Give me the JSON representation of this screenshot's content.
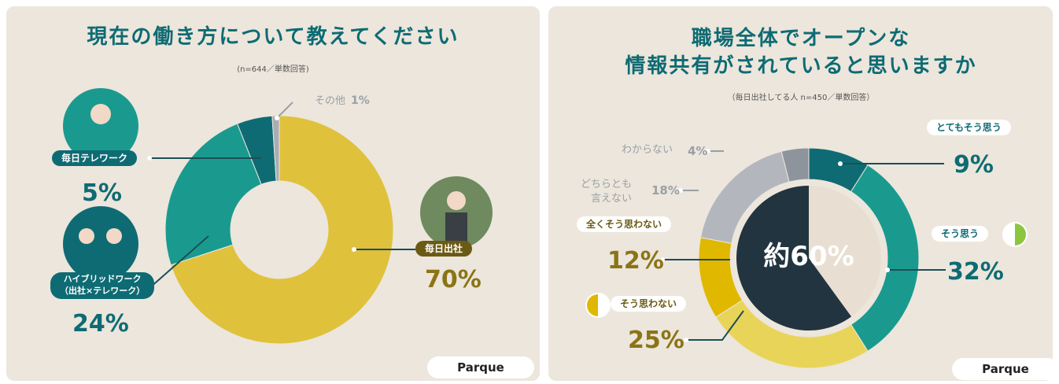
{
  "brand": "Parque",
  "chart_data": [
    {
      "type": "donut",
      "title": "現在の働き方について教えてください",
      "subtitle": "(n=644／単数回答)",
      "categories": [
        "毎日出社",
        "ハイブリッドワーク\n（出社×テレワーク）",
        "毎日テレワーク",
        "その他"
      ],
      "values": [
        70,
        24,
        5,
        1
      ],
      "value_labels": [
        "70%",
        "24%",
        "5%",
        "1%"
      ],
      "colors": [
        "#dfc13c",
        "#1a9a8f",
        "#0e6b73",
        "#a9adb3"
      ]
    },
    {
      "type": "donut",
      "title": "職場全体でオープンな\n情報共有がされていると思いますか",
      "subtitle": "（毎日出社してる人 n=450／単数回答）",
      "categories": [
        "とてもそう思う",
        "そう思う",
        "そう思わない",
        "全くそう思わない",
        "どちらとも\n言えない",
        "わからない"
      ],
      "values": [
        9,
        32,
        25,
        12,
        18,
        4
      ],
      "value_labels": [
        "9%",
        "32%",
        "25%",
        "12%",
        "18%",
        "4%"
      ],
      "colors": [
        "#0e6b73",
        "#1a9a8f",
        "#e9d45a",
        "#e0b800",
        "#b3b7bd",
        "#8d949c"
      ],
      "center_label": {
        "value": 60,
        "label": "約60%"
      },
      "center_color": "#22343f"
    }
  ]
}
